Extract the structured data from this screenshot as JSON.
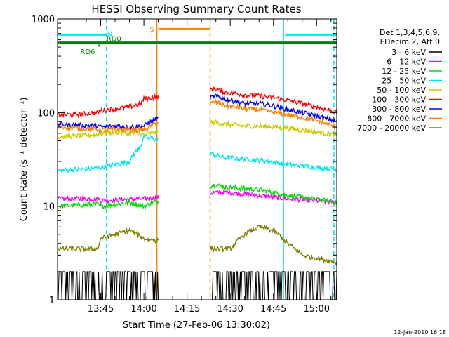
{
  "chart_data": {
    "type": "line",
    "title": "HESSI Observing Summary Count Rates",
    "xlabel": "Start Time (27-Feb-06 13:30:02)",
    "ylabel": "Count Rate (s⁻¹ detector⁻¹)",
    "x_unit": "minutes since 13:30",
    "y_scale": "log",
    "ylim": [
      1,
      1000
    ],
    "xlim": [
      0,
      97
    ],
    "x_ticks": [
      {
        "x": 15,
        "label": "13:45"
      },
      {
        "x": 30,
        "label": "14:00"
      },
      {
        "x": 45,
        "label": "14:15"
      },
      {
        "x": 60,
        "label": "14:30"
      },
      {
        "x": 75,
        "label": "14:45"
      },
      {
        "x": 90,
        "label": "15:00"
      }
    ],
    "y_ticks": [
      {
        "y": 1,
        "label": "1"
      },
      {
        "y": 10,
        "label": "10"
      },
      {
        "y": 100,
        "label": "100"
      },
      {
        "y": 1000,
        "label": "1000"
      }
    ],
    "legend_title": [
      "Det 1,3,4,5,6,9,",
      "FDecim 2, Att 0"
    ],
    "legend_placement": "right",
    "footer": "12-Jan-2010 16:18",
    "series": [
      {
        "name": "3 - 6 keV",
        "color": "#000000",
        "points": [
          [
            0,
            1.5
          ],
          [
            14.5,
            1.5
          ],
          [
            15,
            1.6
          ],
          [
            30,
            1.5
          ],
          [
            35,
            1.5
          ],
          [
            52,
            1.5
          ],
          [
            55,
            1.5
          ],
          [
            70,
            1.6
          ],
          [
            80,
            1.5
          ],
          [
            97,
            1.5
          ]
        ]
      },
      {
        "name": "6 - 12 keV",
        "color": "#ff00ff",
        "points": [
          [
            0,
            12
          ],
          [
            14,
            12
          ],
          [
            15,
            11.5
          ],
          [
            30,
            12
          ],
          [
            55,
            14
          ],
          [
            60,
            14
          ],
          [
            70,
            13
          ],
          [
            80,
            12
          ],
          [
            97,
            11
          ]
        ]
      },
      {
        "name": "12 - 25 keV",
        "color": "#00dd00",
        "points": [
          [
            0,
            10
          ],
          [
            14,
            10.5
          ],
          [
            15,
            10
          ],
          [
            25,
            11
          ],
          [
            30,
            10
          ],
          [
            55,
            17
          ],
          [
            58,
            16
          ],
          [
            70,
            15
          ],
          [
            80,
            13
          ],
          [
            97,
            11
          ]
        ]
      },
      {
        "name": "25 - 50 keV",
        "color": "#00e5ee",
        "points": [
          [
            0,
            24
          ],
          [
            10,
            25
          ],
          [
            15,
            26
          ],
          [
            20,
            28
          ],
          [
            25,
            30
          ],
          [
            29,
            45
          ],
          [
            30,
            55
          ],
          [
            55,
            35
          ],
          [
            58,
            33
          ],
          [
            65,
            32
          ],
          [
            70,
            31
          ],
          [
            80,
            28
          ],
          [
            90,
            26
          ],
          [
            97,
            25
          ]
        ]
      },
      {
        "name": "50 - 100 keV",
        "color": "#cccc00",
        "points": [
          [
            0,
            55
          ],
          [
            14,
            58
          ],
          [
            15,
            60
          ],
          [
            20,
            62
          ],
          [
            25,
            60
          ],
          [
            30,
            58
          ],
          [
            55,
            80
          ],
          [
            58,
            75
          ],
          [
            65,
            72
          ],
          [
            70,
            72
          ],
          [
            80,
            68
          ],
          [
            90,
            62
          ],
          [
            97,
            58
          ]
        ]
      },
      {
        "name": "100 - 300 keV",
        "color": "#ff0000",
        "points": [
          [
            0,
            95
          ],
          [
            5,
            95
          ],
          [
            14,
            100
          ],
          [
            15,
            105
          ],
          [
            20,
            110
          ],
          [
            25,
            115
          ],
          [
            29,
            125
          ],
          [
            30,
            140
          ],
          [
            55,
            180
          ],
          [
            58,
            165
          ],
          [
            65,
            155
          ],
          [
            70,
            150
          ],
          [
            75,
            145
          ],
          [
            80,
            135
          ],
          [
            90,
            115
          ],
          [
            97,
            100
          ]
        ]
      },
      {
        "name": "300 - 800 keV",
        "color": "#0000ff",
        "points": [
          [
            0,
            75
          ],
          [
            14,
            72
          ],
          [
            15,
            70
          ],
          [
            20,
            72
          ],
          [
            25,
            70
          ],
          [
            30,
            72
          ],
          [
            55,
            150
          ],
          [
            58,
            140
          ],
          [
            65,
            125
          ],
          [
            70,
            125
          ],
          [
            75,
            118
          ],
          [
            80,
            108
          ],
          [
            90,
            92
          ],
          [
            97,
            80
          ]
        ]
      },
      {
        "name": "800 - 7000 keV",
        "color": "#ff8000",
        "points": [
          [
            0,
            70
          ],
          [
            14,
            66
          ],
          [
            15,
            65
          ],
          [
            20,
            66
          ],
          [
            25,
            65
          ],
          [
            30,
            65
          ],
          [
            55,
            130
          ],
          [
            58,
            120
          ],
          [
            65,
            110
          ],
          [
            70,
            108
          ],
          [
            75,
            100
          ],
          [
            80,
            95
          ],
          [
            90,
            82
          ],
          [
            97,
            70
          ]
        ]
      },
      {
        "name": "7000 - 20000 keV",
        "color": "#808000",
        "points": [
          [
            0,
            3.5
          ],
          [
            14,
            3.5
          ],
          [
            15,
            4.5
          ],
          [
            20,
            5
          ],
          [
            25,
            5.5
          ],
          [
            30,
            4.5
          ],
          [
            55,
            3.5
          ],
          [
            60,
            3.5
          ],
          [
            65,
            5
          ],
          [
            70,
            6
          ],
          [
            75,
            5.5
          ],
          [
            80,
            4
          ],
          [
            85,
            3
          ],
          [
            97,
            2.5
          ]
        ]
      }
    ],
    "annotations": [
      {
        "label": "N",
        "color": "#00e5ee",
        "x_from": 0,
        "x_to": 17,
        "y": 680
      },
      {
        "label": "",
        "color": "#00e5ee",
        "x_from": 79,
        "x_to": 97,
        "y": 680
      },
      {
        "label": "S",
        "color": "#ff8000",
        "x_from": 35,
        "x_to": 53,
        "y": 780
      },
      {
        "label": "RD0",
        "color": "#008000",
        "x_from": 0,
        "x_to": 97,
        "y": 560
      },
      {
        "label": "RD6",
        "color": "#008000",
        "x_from": 14,
        "x_to": 14,
        "y": 500
      }
    ],
    "vlines": [
      {
        "x": 17,
        "color": "#00e5ee",
        "style": "dashed"
      },
      {
        "x": 78.5,
        "color": "#00e5ee",
        "style": "solid"
      },
      {
        "x": 96,
        "color": "#00e5ee",
        "style": "dashed"
      },
      {
        "x": 34.5,
        "color": "#ff8000",
        "style": "solid"
      },
      {
        "x": 53,
        "color": "#ff8000",
        "style": "dashed"
      }
    ],
    "data_gap": [
      35,
      53
    ]
  }
}
